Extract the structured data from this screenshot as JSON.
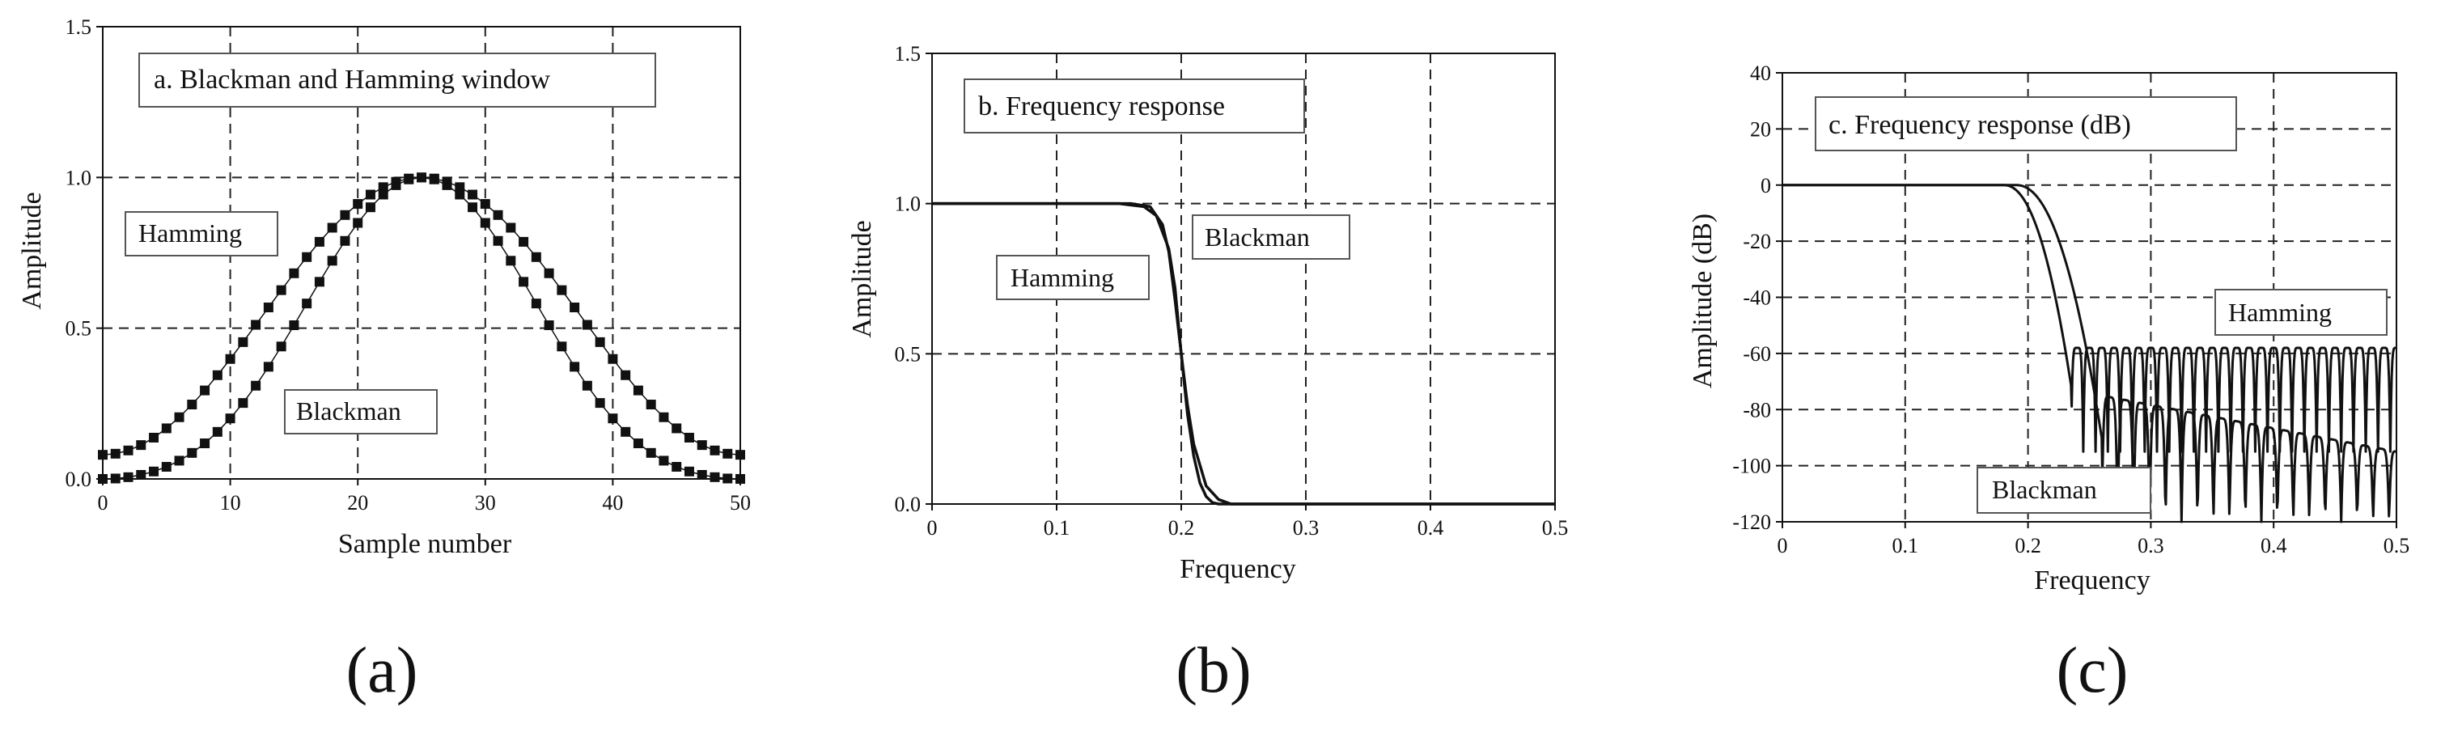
{
  "chart_data": [
    {
      "type": "scatter",
      "title": "a.  Blackman and Hamming window",
      "xlabel": "Sample number",
      "ylabel": "Amplitude",
      "caption": "(a)",
      "xlim": [
        0,
        50
      ],
      "ylim": [
        0,
        1.5
      ],
      "xticks": [
        "0",
        "10",
        "20",
        "30",
        "40",
        "50"
      ],
      "yticks": [
        "0.0",
        "0.5",
        "1.0",
        "1.5"
      ],
      "grid": true,
      "markers": "filled squares joined by thin line",
      "series": [
        {
          "label": "Hamming",
          "N": 50,
          "window": "hamming"
        },
        {
          "label": "Blackman",
          "N": 50,
          "window": "blackman"
        }
      ]
    },
    {
      "type": "line",
      "title": "b.  Frequency response",
      "xlabel": "Frequency",
      "ylabel": "Amplitude",
      "caption": "(b)",
      "xlim": [
        0,
        0.5
      ],
      "ylim": [
        0,
        1.5
      ],
      "xticks": [
        "0",
        "0.1",
        "0.2",
        "0.3",
        "0.4",
        "0.5"
      ],
      "yticks": [
        "0.0",
        "0.5",
        "1.0",
        "1.5"
      ],
      "grid": true,
      "series": [
        {
          "label": "Hamming",
          "x": [
            0,
            0.15,
            0.17,
            0.18,
            0.19,
            0.195,
            0.2,
            0.205,
            0.21,
            0.215,
            0.22,
            0.225,
            0.23,
            0.5
          ],
          "y": [
            1.0,
            1.0,
            0.99,
            0.96,
            0.85,
            0.72,
            0.5,
            0.3,
            0.16,
            0.07,
            0.025,
            0.005,
            0.0,
            0.0
          ]
        },
        {
          "label": "Blackman",
          "x": [
            0,
            0.16,
            0.175,
            0.185,
            0.19,
            0.195,
            0.2,
            0.205,
            0.21,
            0.22,
            0.23,
            0.24,
            0.5
          ],
          "y": [
            1.0,
            1.0,
            0.99,
            0.93,
            0.84,
            0.68,
            0.5,
            0.33,
            0.2,
            0.06,
            0.015,
            0.0,
            0.0
          ]
        }
      ]
    },
    {
      "type": "line",
      "title": "c.  Frequency response (dB)",
      "xlabel": "Frequency",
      "ylabel": "Amplitude (dB)",
      "caption": "(c)",
      "xlim": [
        0,
        0.5
      ],
      "ylim": [
        -120,
        40
      ],
      "xticks": [
        "0",
        "0.1",
        "0.2",
        "0.3",
        "0.4",
        "0.5"
      ],
      "yticks": [
        "40",
        "20",
        "0",
        "-20",
        "-40",
        "-60",
        "-80",
        "-100",
        "-120"
      ],
      "grid": true,
      "series": [
        {
          "label": "Hamming",
          "passband_end": 0.18,
          "transition_end": 0.235,
          "floor_peak": -58,
          "null_depth": -95,
          "lobe_period": 0.01
        },
        {
          "label": "Blackman",
          "passband_end": 0.19,
          "transition_end": 0.26,
          "floor_peak": -75,
          "floor_peak_end": -95,
          "null_depth": -120,
          "lobe_period": 0.013
        }
      ]
    }
  ]
}
